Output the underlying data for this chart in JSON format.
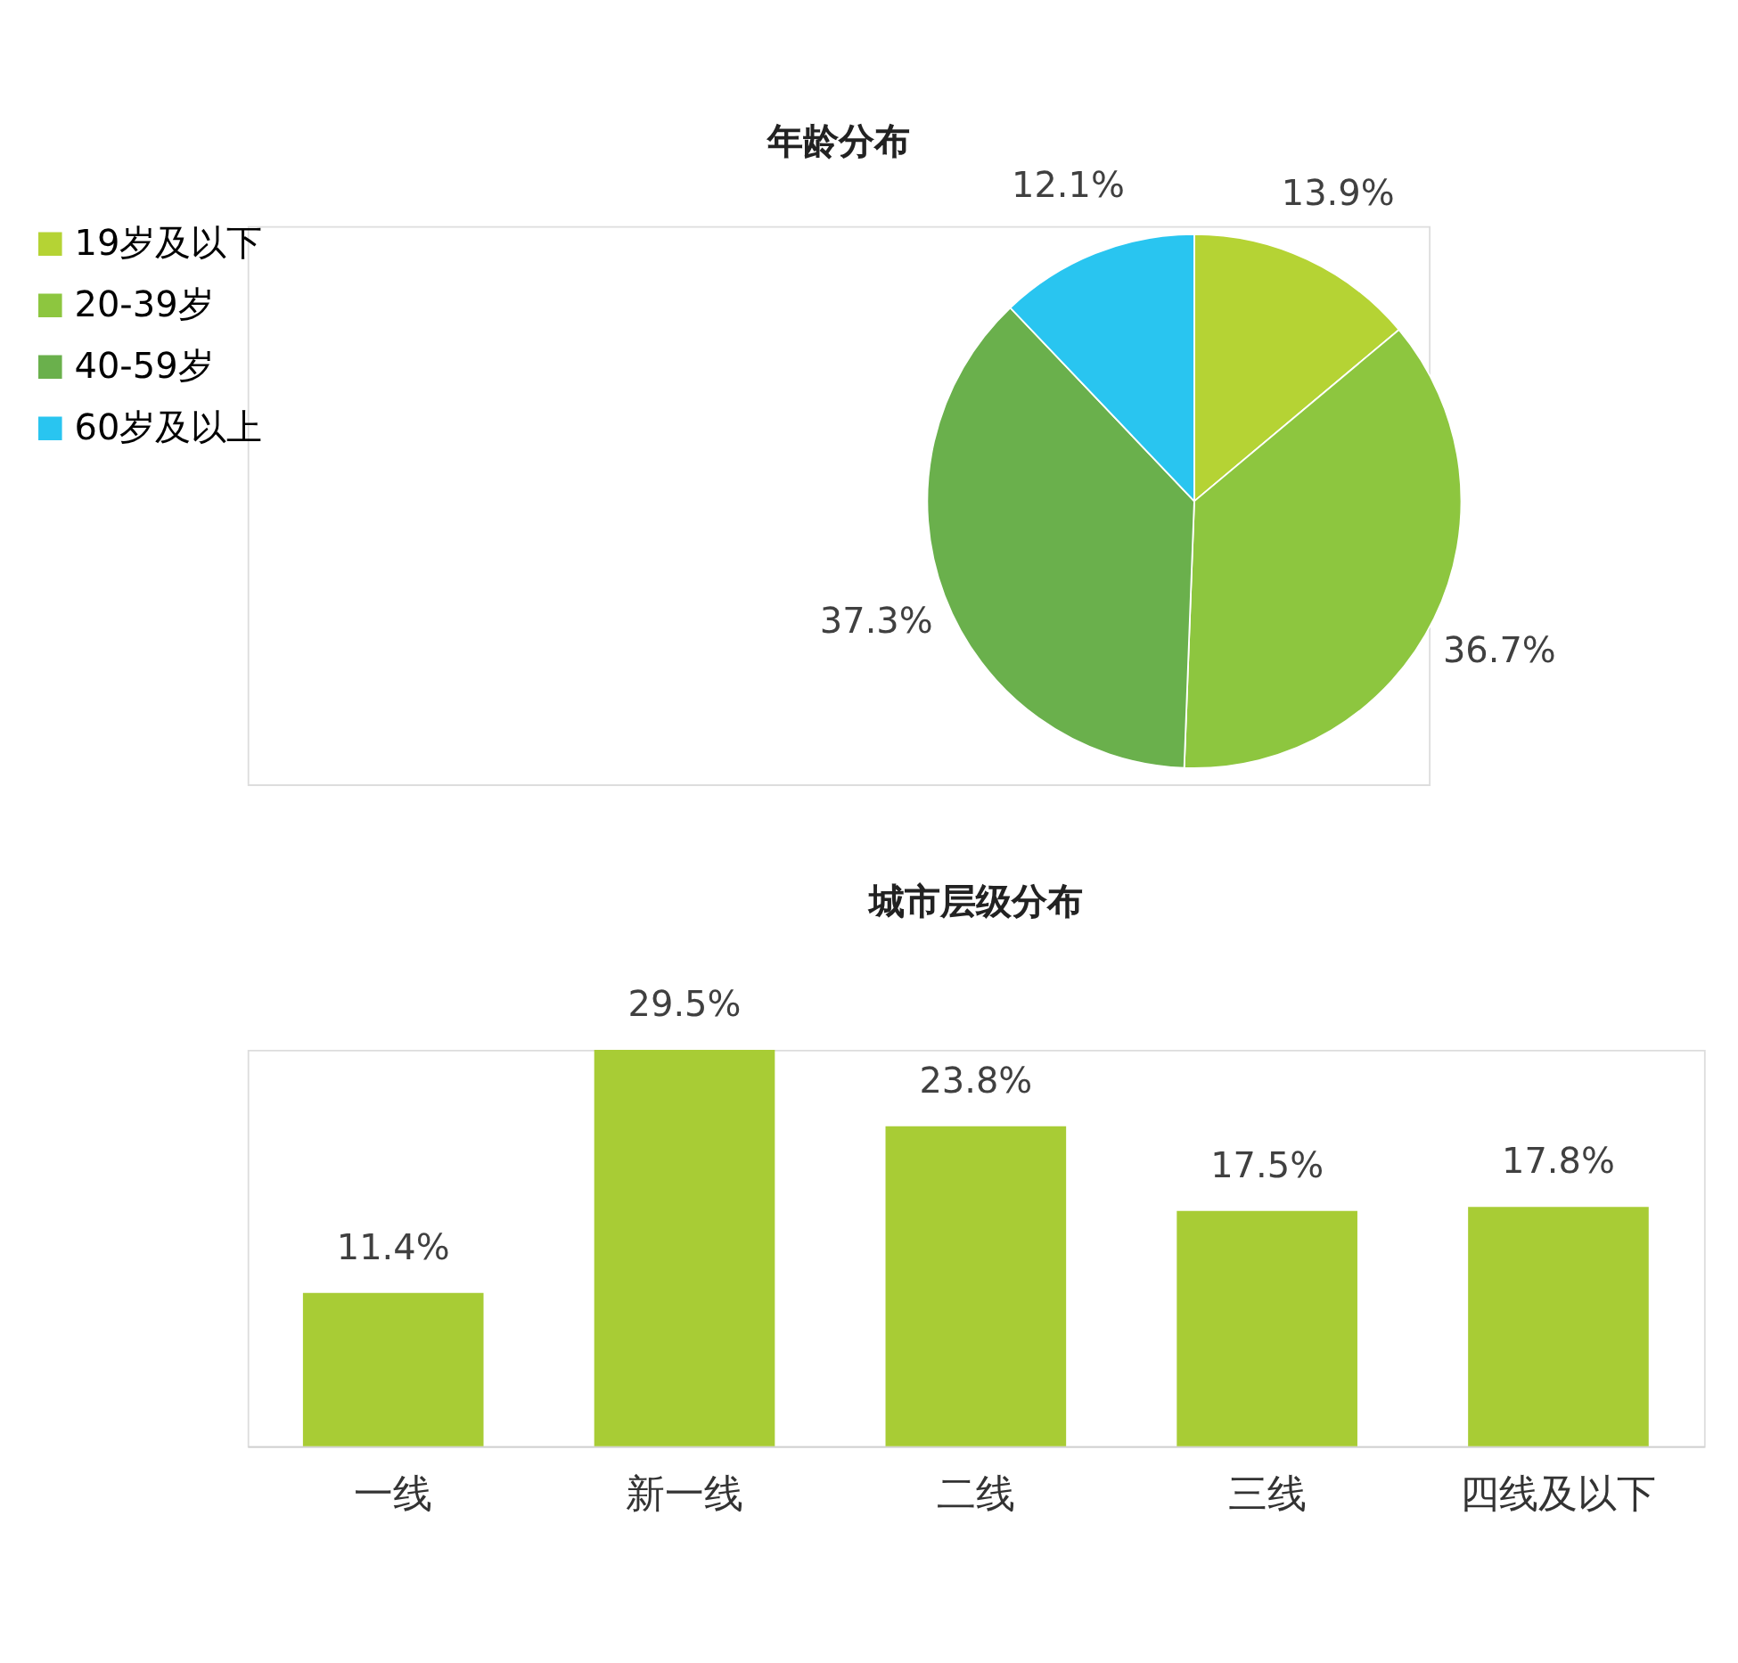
{
  "chart_data": [
    {
      "type": "pie",
      "title": "年龄分布",
      "categories": [
        "19岁及以下",
        "20-39岁",
        "40-59岁",
        "60岁及以上"
      ],
      "values": [
        13.9,
        36.7,
        37.3,
        12.1
      ],
      "colors": [
        "#b5d334",
        "#8dc63f",
        "#6ab04c",
        "#29c5f0"
      ],
      "value_labels": [
        "13.9%",
        "36.7%",
        "37.3%",
        "12.1%"
      ],
      "legend": "left"
    },
    {
      "type": "bar",
      "title": "城市层级分布",
      "categories": [
        "一线",
        "新一线",
        "二线",
        "三线",
        "四线及以下"
      ],
      "values": [
        11.4,
        29.5,
        23.8,
        17.5,
        17.8
      ],
      "color": "#a8cc35",
      "value_labels": [
        "11.4%",
        "29.5%",
        "23.8%",
        "17.5%",
        "17.8%"
      ]
    }
  ]
}
